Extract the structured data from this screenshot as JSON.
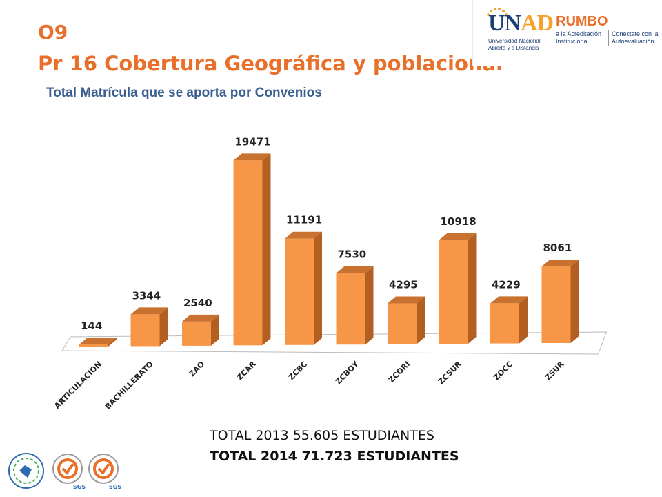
{
  "header": {
    "code": "O9",
    "title": "Pr 16 Cobertura Geográfica y poblacional",
    "subtitle": "Total Matrícula que se aporta por Convenios"
  },
  "logos": {
    "unad_name_a": "UN",
    "unad_name_b": "AD",
    "unad_line1": "Universidad Nacional",
    "unad_line2": "Abierta y a Distancia",
    "rumbo": "RUMBO",
    "rumbo_line1": "a la Acreditación",
    "rumbo_line2": "Institucional",
    "conectate_line1": "Conéctate con la",
    "conectate_line2": "Autoevaluación"
  },
  "chart_data": {
    "type": "bar",
    "categories": [
      "ARTICULACION",
      "BACHILLERATO",
      "ZAO",
      "ZCAR",
      "ZCBC",
      "ZCBOY",
      "ZCORI",
      "ZCSUR",
      "ZOCC",
      "ZSUR"
    ],
    "values": [
      144,
      3344,
      2540,
      19471,
      11191,
      7530,
      4295,
      10918,
      4229,
      8061
    ],
    "title": "Total Matrícula que se aporta por Convenios",
    "xlabel": "",
    "ylabel": "",
    "ylim": [
      0,
      19471
    ],
    "grid": false,
    "legend": "none",
    "style": "3d-column",
    "colors": {
      "front": "#F79646",
      "side": "#B35F22",
      "top": "#C9712E",
      "floor": "#ffffff"
    }
  },
  "totals": {
    "t2013": "TOTAL 2013 55.605 ESTUDIANTES",
    "t2014": "TOTAL 2014 71.723 ESTUDIANTES"
  },
  "seals": {
    "colors": [
      "#2E6BB0",
      "#E8702A",
      "#4CAF50"
    ],
    "labels": [
      "SGS",
      "SGS"
    ]
  }
}
